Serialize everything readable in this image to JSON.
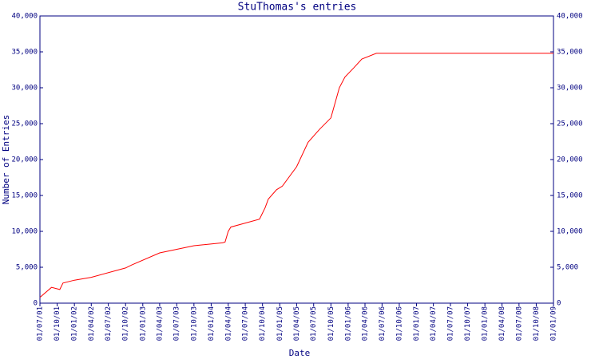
{
  "chart_data": {
    "type": "line",
    "title": "StuThomas's entries",
    "x_label": "Date",
    "y_label": "Number of Entries",
    "xlim": [
      "01/07/01",
      "01/01/09"
    ],
    "xticks": [
      "01/07/01",
      "01/10/01",
      "01/01/02",
      "01/04/02",
      "01/07/02",
      "01/10/02",
      "01/01/03",
      "01/04/03",
      "01/07/03",
      "01/10/03",
      "01/01/04",
      "01/04/04",
      "01/07/04",
      "01/10/04",
      "01/01/05",
      "01/04/05",
      "01/07/05",
      "01/10/05",
      "01/01/06",
      "01/04/06",
      "01/07/06",
      "01/10/06",
      "01/01/07",
      "01/04/07",
      "01/07/07",
      "01/10/07",
      "01/01/08",
      "01/04/08",
      "01/07/08",
      "01/10/08",
      "01/01/09"
    ],
    "ylim": [
      0,
      40000
    ],
    "yticks": [
      0,
      {
        "value": 5000,
        "label": "5,000"
      },
      {
        "value": 10000,
        "label": "10,000"
      },
      {
        "value": 15000,
        "label": "15,000"
      },
      {
        "value": 20000,
        "label": "20,000"
      },
      {
        "value": 25000,
        "label": "25,000"
      },
      {
        "value": 30000,
        "label": "30,000"
      },
      {
        "value": 35000,
        "label": "35,000"
      },
      {
        "value": 40000,
        "label": "40,000"
      }
    ],
    "right_axis_labels": true,
    "series": [
      {
        "color": "#ff0000",
        "x": [
          "01/07/01",
          "01/09/01",
          "15/10/01",
          "01/11/01",
          "01/01/02",
          "01/04/02",
          "01/10/02",
          "01/11/02",
          "01/04/03",
          "01/10/03",
          "01/03/04",
          "15/03/04",
          "01/04/04",
          "15/04/04",
          "15/09/04",
          "15/10/04",
          "01/11/04",
          "15/12/04",
          "15/01/05",
          "01/04/05",
          "01/06/05",
          "01/08/05",
          "01/10/05",
          "15/11/05",
          "15/12/05",
          "01/02/06",
          "15/03/06",
          "01/06/06",
          "01/01/09"
        ],
        "values": [
          800,
          2200,
          1900,
          2800,
          3200,
          3600,
          4900,
          5300,
          7000,
          8000,
          8400,
          8500,
          10000,
          10600,
          11700,
          13300,
          14500,
          15800,
          16300,
          19000,
          22400,
          24200,
          25800,
          30000,
          31500,
          32800,
          34000,
          34800,
          34800
        ]
      }
    ]
  }
}
